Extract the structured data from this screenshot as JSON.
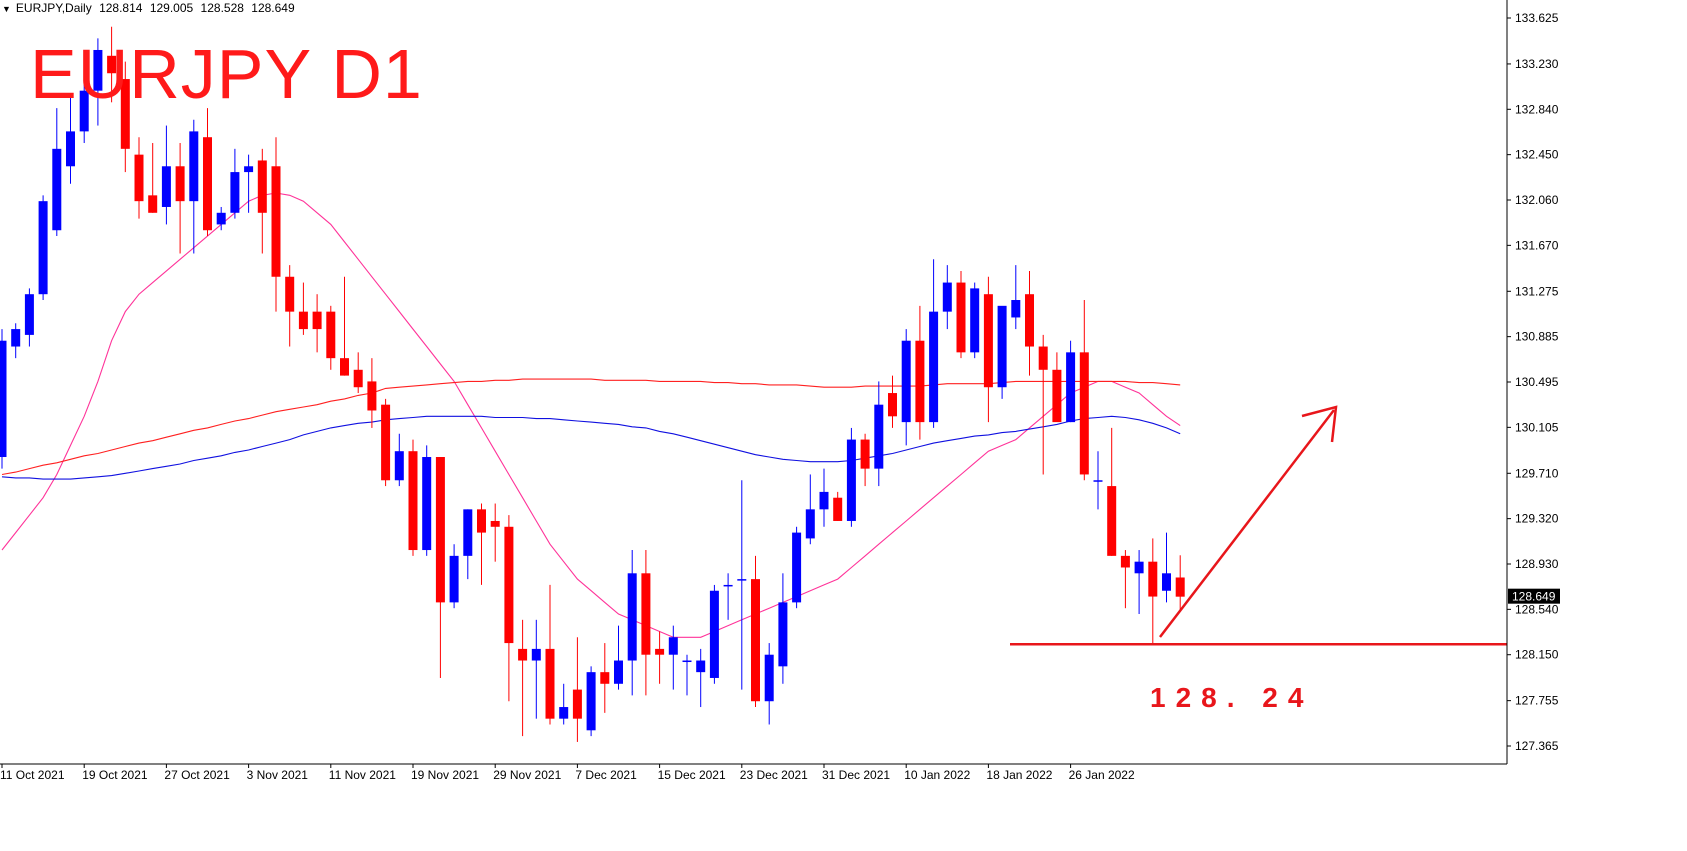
{
  "header": {
    "symbol": "EURJPY,Daily",
    "open": "128.814",
    "high": "129.005",
    "low": "128.528",
    "close": "128.649"
  },
  "annotations": {
    "title": "EURJPY D1",
    "support_label": "128. 24",
    "support_level": 128.24
  },
  "colors": {
    "bull": "#0000ff",
    "bear": "#ff0000",
    "ma_fast": "#ff3399",
    "ma_slow_red": "#ff2020",
    "ma_slow_blue": "#1010e0",
    "annotation": "#e8161b",
    "grid_axis": "#000000"
  },
  "chart_data": {
    "type": "candlestick",
    "timeframe": "Daily",
    "ylim": [
      127.2,
      133.8
    ],
    "y_ticks": [
      "133.625",
      "133.230",
      "132.840",
      "132.450",
      "132.060",
      "131.670",
      "131.275",
      "130.885",
      "130.495",
      "130.105",
      "129.710",
      "129.320",
      "128.930",
      "128.540",
      "128.150",
      "127.755",
      "127.365"
    ],
    "current_price_label": "128.649",
    "x_tick_labels": [
      "11 Oct 2021",
      "19 Oct 2021",
      "27 Oct 2021",
      "3 Nov 2021",
      "11 Nov 2021",
      "19 Nov 2021",
      "29 Nov 2021",
      "7 Dec 2021",
      "15 Dec 2021",
      "23 Dec 2021",
      "31 Dec 2021",
      "10 Jan 2022",
      "18 Jan 2022",
      "26 Jan 2022"
    ],
    "candles": [
      {
        "o": 129.85,
        "h": 130.95,
        "l": 129.75,
        "c": 130.85
      },
      {
        "o": 130.8,
        "h": 131.0,
        "l": 130.7,
        "c": 130.95
      },
      {
        "o": 130.9,
        "h": 131.3,
        "l": 130.8,
        "c": 131.25
      },
      {
        "o": 131.25,
        "h": 132.1,
        "l": 131.2,
        "c": 132.05
      },
      {
        "o": 131.8,
        "h": 132.85,
        "l": 131.75,
        "c": 132.5
      },
      {
        "o": 132.35,
        "h": 132.95,
        "l": 132.2,
        "c": 132.65
      },
      {
        "o": 132.65,
        "h": 133.3,
        "l": 132.55,
        "c": 133.0
      },
      {
        "o": 133.0,
        "h": 133.45,
        "l": 132.7,
        "c": 133.35
      },
      {
        "o": 133.3,
        "h": 133.55,
        "l": 132.9,
        "c": 133.15
      },
      {
        "o": 133.1,
        "h": 133.25,
        "l": 132.3,
        "c": 132.5
      },
      {
        "o": 132.45,
        "h": 132.6,
        "l": 131.9,
        "c": 132.05
      },
      {
        "o": 132.1,
        "h": 132.55,
        "l": 131.95,
        "c": 131.95
      },
      {
        "o": 132.0,
        "h": 132.7,
        "l": 131.85,
        "c": 132.35
      },
      {
        "o": 132.35,
        "h": 132.55,
        "l": 131.6,
        "c": 132.05
      },
      {
        "o": 132.05,
        "h": 132.75,
        "l": 131.6,
        "c": 132.65
      },
      {
        "o": 132.6,
        "h": 132.85,
        "l": 131.75,
        "c": 131.8
      },
      {
        "o": 131.85,
        "h": 132.0,
        "l": 131.8,
        "c": 131.95
      },
      {
        "o": 131.95,
        "h": 132.5,
        "l": 131.9,
        "c": 132.3
      },
      {
        "o": 132.3,
        "h": 132.45,
        "l": 131.95,
        "c": 132.35
      },
      {
        "o": 132.4,
        "h": 132.5,
        "l": 131.6,
        "c": 131.95
      },
      {
        "o": 132.35,
        "h": 132.6,
        "l": 131.1,
        "c": 131.4
      },
      {
        "o": 131.4,
        "h": 131.5,
        "l": 130.8,
        "c": 131.1
      },
      {
        "o": 131.1,
        "h": 131.35,
        "l": 130.9,
        "c": 130.95
      },
      {
        "o": 131.1,
        "h": 131.25,
        "l": 130.75,
        "c": 130.95
      },
      {
        "o": 131.1,
        "h": 131.15,
        "l": 130.6,
        "c": 130.7
      },
      {
        "o": 130.7,
        "h": 131.4,
        "l": 130.55,
        "c": 130.55
      },
      {
        "o": 130.6,
        "h": 130.75,
        "l": 130.4,
        "c": 130.45
      },
      {
        "o": 130.5,
        "h": 130.7,
        "l": 130.1,
        "c": 130.25
      },
      {
        "o": 130.3,
        "h": 130.35,
        "l": 129.6,
        "c": 129.65
      },
      {
        "o": 129.65,
        "h": 130.05,
        "l": 129.6,
        "c": 129.9
      },
      {
        "o": 129.9,
        "h": 130.0,
        "l": 129.0,
        "c": 129.05
      },
      {
        "o": 129.05,
        "h": 129.95,
        "l": 129.0,
        "c": 129.85
      },
      {
        "o": 129.85,
        "h": 129.85,
        "l": 127.95,
        "c": 128.6
      },
      {
        "o": 128.6,
        "h": 129.1,
        "l": 128.55,
        "c": 129.0
      },
      {
        "o": 129.0,
        "h": 129.4,
        "l": 128.8,
        "c": 129.4
      },
      {
        "o": 129.4,
        "h": 129.45,
        "l": 128.75,
        "c": 129.2
      },
      {
        "o": 129.3,
        "h": 129.45,
        "l": 128.95,
        "c": 129.25
      },
      {
        "o": 129.25,
        "h": 129.35,
        "l": 127.75,
        "c": 128.25
      },
      {
        "o": 128.2,
        "h": 128.45,
        "l": 127.45,
        "c": 128.1
      },
      {
        "o": 128.1,
        "h": 128.45,
        "l": 127.6,
        "c": 128.2
      },
      {
        "o": 128.2,
        "h": 128.75,
        "l": 127.55,
        "c": 127.6
      },
      {
        "o": 127.6,
        "h": 127.9,
        "l": 127.55,
        "c": 127.7
      },
      {
        "o": 127.85,
        "h": 128.3,
        "l": 127.4,
        "c": 127.6
      },
      {
        "o": 127.5,
        "h": 128.05,
        "l": 127.45,
        "c": 128.0
      },
      {
        "o": 128.0,
        "h": 128.25,
        "l": 127.65,
        "c": 127.9
      },
      {
        "o": 127.9,
        "h": 128.4,
        "l": 127.85,
        "c": 128.1
      },
      {
        "o": 128.1,
        "h": 129.05,
        "l": 127.8,
        "c": 128.85
      },
      {
        "o": 128.85,
        "h": 129.05,
        "l": 127.8,
        "c": 128.15
      },
      {
        "o": 128.2,
        "h": 128.35,
        "l": 127.9,
        "c": 128.15
      },
      {
        "o": 128.15,
        "h": 128.4,
        "l": 127.85,
        "c": 128.3
      },
      {
        "o": 128.1,
        "h": 128.15,
        "l": 127.8,
        "c": 128.1
      },
      {
        "o": 128.0,
        "h": 128.2,
        "l": 127.7,
        "c": 128.1
      },
      {
        "o": 127.95,
        "h": 128.75,
        "l": 127.9,
        "c": 128.7
      },
      {
        "o": 128.75,
        "h": 128.85,
        "l": 128.45,
        "c": 128.75
      },
      {
        "o": 128.8,
        "h": 129.65,
        "l": 127.85,
        "c": 128.8
      },
      {
        "o": 128.8,
        "h": 129.0,
        "l": 127.7,
        "c": 127.75
      },
      {
        "o": 127.75,
        "h": 128.25,
        "l": 127.55,
        "c": 128.15
      },
      {
        "o": 128.05,
        "h": 128.85,
        "l": 127.9,
        "c": 128.6
      },
      {
        "o": 128.6,
        "h": 129.25,
        "l": 128.55,
        "c": 129.2
      },
      {
        "o": 129.15,
        "h": 129.7,
        "l": 129.1,
        "c": 129.4
      },
      {
        "o": 129.4,
        "h": 129.75,
        "l": 129.25,
        "c": 129.55
      },
      {
        "o": 129.5,
        "h": 129.55,
        "l": 129.3,
        "c": 129.3
      },
      {
        "o": 129.3,
        "h": 130.1,
        "l": 129.25,
        "c": 130.0
      },
      {
        "o": 130.0,
        "h": 130.05,
        "l": 129.6,
        "c": 129.75
      },
      {
        "o": 129.75,
        "h": 130.5,
        "l": 129.6,
        "c": 130.3
      },
      {
        "o": 130.4,
        "h": 130.55,
        "l": 130.1,
        "c": 130.2
      },
      {
        "o": 130.15,
        "h": 130.95,
        "l": 129.95,
        "c": 130.85
      },
      {
        "o": 130.85,
        "h": 131.15,
        "l": 130.0,
        "c": 130.15
      },
      {
        "o": 130.15,
        "h": 131.55,
        "l": 130.1,
        "c": 131.1
      },
      {
        "o": 131.1,
        "h": 131.5,
        "l": 130.95,
        "c": 131.35
      },
      {
        "o": 131.35,
        "h": 131.45,
        "l": 130.7,
        "c": 130.75
      },
      {
        "o": 130.75,
        "h": 131.35,
        "l": 130.7,
        "c": 131.3
      },
      {
        "o": 131.25,
        "h": 131.4,
        "l": 130.15,
        "c": 130.45
      },
      {
        "o": 130.45,
        "h": 131.1,
        "l": 130.35,
        "c": 131.15
      },
      {
        "o": 131.05,
        "h": 131.5,
        "l": 130.95,
        "c": 131.2
      },
      {
        "o": 131.25,
        "h": 131.45,
        "l": 130.55,
        "c": 130.8
      },
      {
        "o": 130.8,
        "h": 130.9,
        "l": 129.7,
        "c": 130.6
      },
      {
        "o": 130.6,
        "h": 130.75,
        "l": 130.2,
        "c": 130.15
      },
      {
        "o": 130.15,
        "h": 130.85,
        "l": 130.15,
        "c": 130.75
      },
      {
        "o": 130.75,
        "h": 131.2,
        "l": 129.65,
        "c": 129.7
      },
      {
        "o": 129.65,
        "h": 129.9,
        "l": 129.4,
        "c": 129.65
      },
      {
        "o": 129.6,
        "h": 130.1,
        "l": 129.0,
        "c": 129.0
      },
      {
        "o": 129.0,
        "h": 129.05,
        "l": 128.55,
        "c": 128.9
      },
      {
        "o": 128.85,
        "h": 129.05,
        "l": 128.5,
        "c": 128.95
      },
      {
        "o": 128.95,
        "h": 129.15,
        "l": 128.25,
        "c": 128.65
      },
      {
        "o": 128.7,
        "h": 129.2,
        "l": 128.6,
        "c": 128.85
      },
      {
        "o": 128.814,
        "h": 129.005,
        "l": 128.528,
        "c": 128.649
      }
    ],
    "moving_averages": [
      {
        "color": "#ff3399",
        "values": [
          129.05,
          129.2,
          129.35,
          129.5,
          129.7,
          129.95,
          130.2,
          130.5,
          130.85,
          131.1,
          131.25,
          131.35,
          131.45,
          131.55,
          131.65,
          131.75,
          131.85,
          131.95,
          132.05,
          132.1,
          132.12,
          132.1,
          132.05,
          131.95,
          131.85,
          131.7,
          131.55,
          131.4,
          131.25,
          131.1,
          130.95,
          130.8,
          130.65,
          130.5,
          130.3,
          130.1,
          129.9,
          129.7,
          129.5,
          129.3,
          129.1,
          128.95,
          128.8,
          128.7,
          128.6,
          128.5,
          128.45,
          128.4,
          128.35,
          128.3,
          128.3,
          128.3,
          128.35,
          128.4,
          128.45,
          128.5,
          128.55,
          128.6,
          128.65,
          128.7,
          128.75,
          128.8,
          128.9,
          129.0,
          129.1,
          129.2,
          129.3,
          129.4,
          129.5,
          129.6,
          129.7,
          129.8,
          129.9,
          129.95,
          130.0,
          130.1,
          130.2,
          130.3,
          130.4,
          130.45,
          130.5,
          130.5,
          130.45,
          130.4,
          130.3,
          130.2,
          130.12
        ]
      },
      {
        "color": "#ff2020",
        "values": [
          129.7,
          129.72,
          129.75,
          129.78,
          129.8,
          129.83,
          129.86,
          129.88,
          129.91,
          129.94,
          129.97,
          129.99,
          130.02,
          130.05,
          130.08,
          130.1,
          130.13,
          130.16,
          130.18,
          130.21,
          130.24,
          130.26,
          130.28,
          130.3,
          130.33,
          130.35,
          130.38,
          130.4,
          130.44,
          130.45,
          130.46,
          130.47,
          130.48,
          130.49,
          130.5,
          130.5,
          130.51,
          130.51,
          130.52,
          130.52,
          130.52,
          130.52,
          130.52,
          130.52,
          130.51,
          130.51,
          130.51,
          130.51,
          130.5,
          130.5,
          130.5,
          130.5,
          130.49,
          130.49,
          130.48,
          130.48,
          130.47,
          130.47,
          130.47,
          130.46,
          130.45,
          130.45,
          130.45,
          130.46,
          130.46,
          130.46,
          130.46,
          130.46,
          130.47,
          130.48,
          130.48,
          130.48,
          130.48,
          130.49,
          130.5,
          130.5,
          130.5,
          130.5,
          130.5,
          130.5,
          130.5,
          130.5,
          130.5,
          130.49,
          130.49,
          130.48,
          130.47
        ]
      },
      {
        "color": "#1010e0",
        "values": [
          129.68,
          129.67,
          129.67,
          129.66,
          129.66,
          129.66,
          129.67,
          129.68,
          129.69,
          129.71,
          129.73,
          129.75,
          129.77,
          129.79,
          129.82,
          129.84,
          129.86,
          129.89,
          129.91,
          129.94,
          129.97,
          130.0,
          130.04,
          130.07,
          130.1,
          130.12,
          130.14,
          130.15,
          130.17,
          130.18,
          130.19,
          130.2,
          130.2,
          130.2,
          130.2,
          130.2,
          130.19,
          130.19,
          130.19,
          130.18,
          130.18,
          130.17,
          130.16,
          130.15,
          130.14,
          130.13,
          130.11,
          130.1,
          130.07,
          130.05,
          130.02,
          129.99,
          129.96,
          129.93,
          129.9,
          129.87,
          129.85,
          129.83,
          129.82,
          129.81,
          129.81,
          129.81,
          129.82,
          129.84,
          129.86,
          129.88,
          129.91,
          129.94,
          129.97,
          129.99,
          130.01,
          130.03,
          130.04,
          130.06,
          130.07,
          130.09,
          130.11,
          130.13,
          130.16,
          130.18,
          130.19,
          130.2,
          130.19,
          130.17,
          130.14,
          130.1,
          130.05
        ]
      }
    ]
  }
}
